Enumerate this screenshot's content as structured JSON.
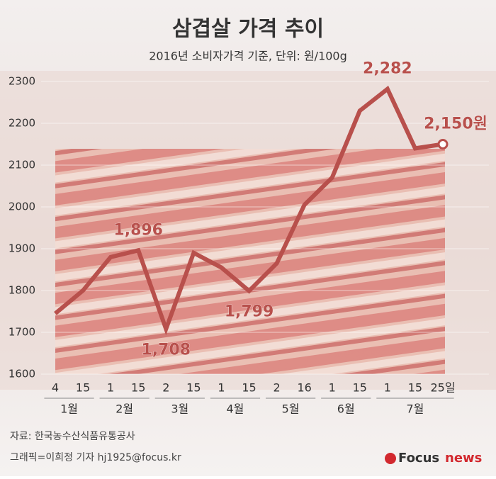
{
  "chart_data": {
    "type": "line",
    "title": "삼겹살 가격 추이",
    "subtitle": "2016년 소비자가격 기준, 단위: 원/100g",
    "categories": [
      "4",
      "15",
      "1",
      "15",
      "2",
      "15",
      "1",
      "15",
      "2",
      "16",
      "1",
      "15",
      "1",
      "15",
      "25일"
    ],
    "months": [
      "1월",
      "1월",
      "2월",
      "2월",
      "3월",
      "3월",
      "4월",
      "4월",
      "5월",
      "5월",
      "6월",
      "6월",
      "7월",
      "7월",
      "7월"
    ],
    "series": [
      {
        "color": "#b8504c",
        "values": [
          1745,
          1800,
          1880,
          1896,
          1708,
          1890,
          1855,
          1799,
          1865,
          2005,
          2070,
          2230,
          2282,
          2140,
          2150
        ],
        "value_labels": [
          null,
          null,
          null,
          "1,896",
          "1,708",
          null,
          null,
          "1,799",
          null,
          null,
          null,
          null,
          "2,282",
          null,
          "2,150원"
        ]
      }
    ],
    "ylim": [
      1600,
      2300
    ],
    "yticks": [
      1600,
      1700,
      1800,
      1900,
      2000,
      2100,
      2200,
      2300
    ],
    "grid": true,
    "source": "자료: 한국농수산식품유통공사",
    "credit": "그래픽=이희정 기자 hj1925@focus.kr",
    "logo": {
      "brand": "Focus",
      "suffix": "news"
    }
  }
}
